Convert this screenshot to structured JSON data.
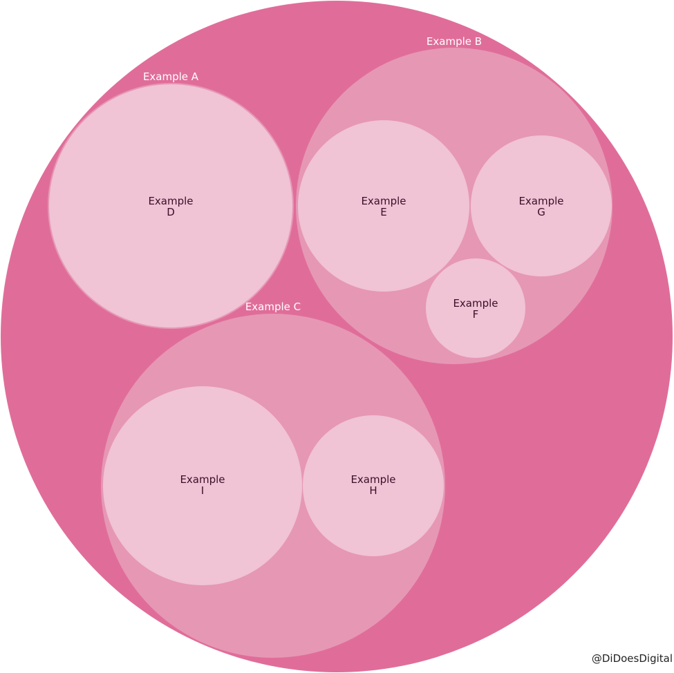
{
  "diagram": {
    "type": "circle-packing",
    "colors": {
      "root": "#e06d99",
      "group": "#e697b4",
      "leaf": "#f0c3d5",
      "group_label": "#ffffff",
      "leaf_label": "#3a1028"
    },
    "groups": [
      {
        "id": "A",
        "label": "Example A",
        "children": [
          {
            "id": "D",
            "line1": "Example",
            "line2": "D"
          }
        ]
      },
      {
        "id": "B",
        "label": "Example B",
        "children": [
          {
            "id": "E",
            "line1": "Example",
            "line2": "E"
          },
          {
            "id": "G",
            "line1": "Example",
            "line2": "G"
          },
          {
            "id": "F",
            "line1": "Example",
            "line2": "F"
          }
        ]
      },
      {
        "id": "C",
        "label": "Example C",
        "children": [
          {
            "id": "I",
            "line1": "Example",
            "line2": "I"
          },
          {
            "id": "H",
            "line1": "Example",
            "line2": "H"
          }
        ]
      }
    ]
  },
  "footer": {
    "credit": "@DiDoesDigital"
  }
}
